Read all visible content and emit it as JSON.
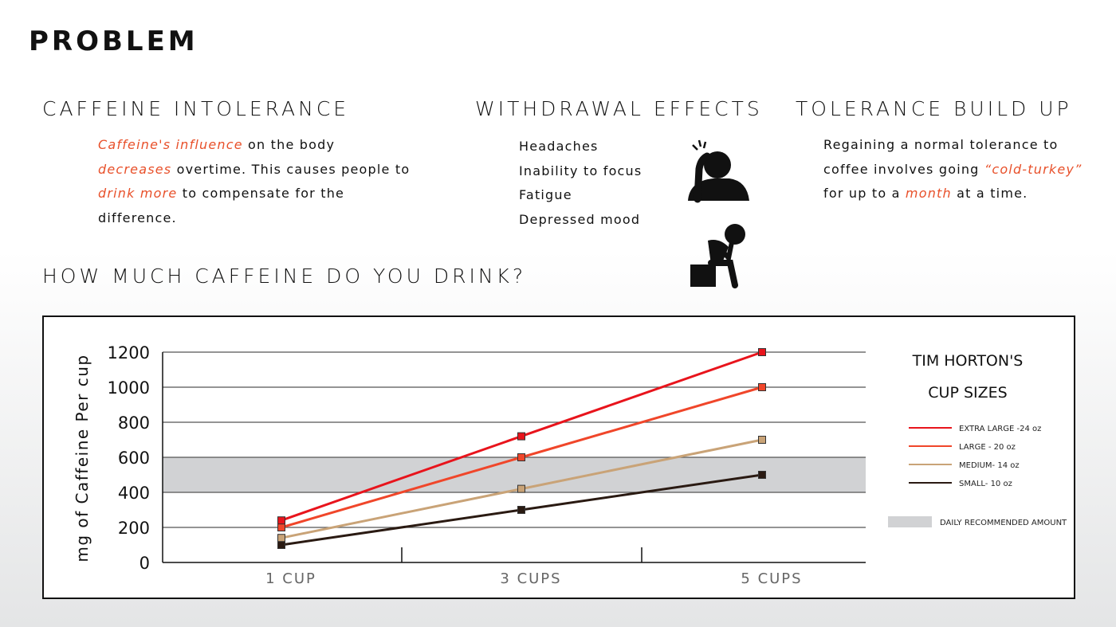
{
  "title": "PROBLEM",
  "intolerance": {
    "heading": "CAFFEINE INTOLERANCE",
    "t1": "Caffeine's influence",
    "t2": " on the body",
    "t3": "decreases",
    "t4": " overtime. This causes people to",
    "t5": "drink more",
    "t6": " to compensate for the",
    "t7": "difference."
  },
  "withdrawal": {
    "heading": "WITHDRAWAL EFFECTS",
    "items": [
      "Headaches",
      "Inability to focus",
      "Fatigue",
      "Depressed mood"
    ]
  },
  "tolerance": {
    "heading": "TOLERANCE BUILD UP",
    "t1": "Regaining a normal tolerance to",
    "t2": "coffee involves going ",
    "t3": "“cold-turkey”",
    "t4": "for up to a ",
    "t5": "month",
    "t6": " at a time."
  },
  "question": "HOW MUCH CAFFEINE DO YOU DRINK?",
  "chart_data": {
    "type": "line",
    "ylabel": "mg of Caffeine Per cup",
    "categories": [
      "1  CUP",
      "3  CUPS",
      "5  CUPS"
    ],
    "yticks": [
      0,
      200,
      400,
      600,
      800,
      1000,
      1200
    ],
    "ylim": [
      0,
      1200
    ],
    "band": {
      "from": 400,
      "to": 600,
      "label": "DAILY RECOMMENDED AMOUNT",
      "color": "#d1d2d4"
    },
    "legend_title": [
      "TIM HORTON'S",
      "CUP SIZES"
    ],
    "legend_placement": "right",
    "series": [
      {
        "name": "EXTRA LARGE -24 oz",
        "color": "#e8141c",
        "values": [
          240,
          720,
          1200
        ]
      },
      {
        "name": "LARGE - 20 oz",
        "color": "#f0462a",
        "values": [
          200,
          600,
          1000
        ]
      },
      {
        "name": "MEDIUM- 14 oz",
        "color": "#c9a377",
        "values": [
          140,
          420,
          700
        ]
      },
      {
        "name": "SMALL- 10 oz",
        "color": "#2a1a12",
        "values": [
          100,
          300,
          500
        ]
      }
    ]
  }
}
